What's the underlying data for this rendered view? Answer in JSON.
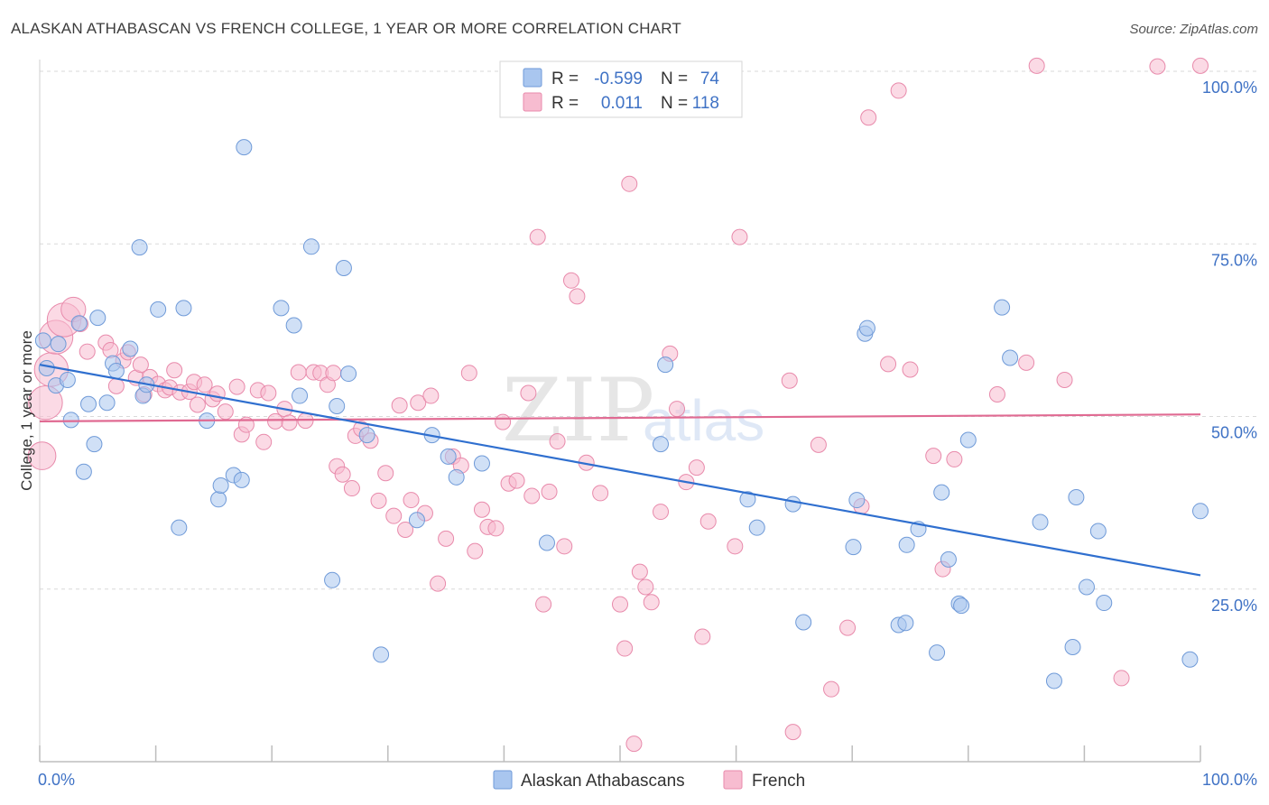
{
  "title": "ALASKAN ATHABASCAN VS FRENCH COLLEGE, 1 YEAR OR MORE CORRELATION CHART",
  "source": "Source: ZipAtlas.com",
  "watermark": {
    "zip": "ZIP",
    "atlas": "atlas"
  },
  "colors": {
    "blue_fill": "#a9c6ef",
    "blue_stroke": "#6f9ad8",
    "blue_line": "#2f6fcf",
    "pink_fill": "#f7bcd0",
    "pink_stroke": "#e88aab",
    "pink_line": "#e06a92",
    "axis_text": "#3f72c5",
    "grid": "#d9d9d9"
  },
  "legend": {
    "row1": {
      "r_label": "R =",
      "r_value": "-0.599",
      "n_label": "N =",
      "n_value": "74"
    },
    "row2": {
      "r_label": "R =",
      "r_value": "0.011",
      "n_label": "N =",
      "n_value": "118"
    }
  },
  "bottom_legend": {
    "series1": "Alaskan Athabascans",
    "series2": "French"
  },
  "chart_data": {
    "type": "scatter",
    "ylabel": "College, 1 year or more",
    "xlim": [
      0,
      100
    ],
    "ylim": [
      0,
      100
    ],
    "x_tick_labels": [
      "0.0%",
      "100.0%"
    ],
    "y_ticks": [
      25,
      50,
      75,
      100
    ],
    "y_tick_labels": [
      "25.0%",
      "50.0%",
      "75.0%",
      "100.0%"
    ],
    "grid": true,
    "legend_position": "top-center",
    "series": [
      {
        "name": "Alaskan Athabascans",
        "r": -0.599,
        "n": 74,
        "trend": {
          "x": [
            0,
            100
          ],
          "y": [
            57.5,
            27.0
          ]
        },
        "points": [
          [
            0.3,
            61.0,
            1
          ],
          [
            0.6,
            57.0,
            1
          ],
          [
            1.4,
            54.5,
            1
          ],
          [
            1.6,
            60.5,
            1
          ],
          [
            2.4,
            55.3,
            1
          ],
          [
            2.7,
            49.5,
            1
          ],
          [
            3.4,
            63.5,
            1
          ],
          [
            3.8,
            42.0,
            1
          ],
          [
            4.2,
            51.8,
            1
          ],
          [
            4.7,
            46.0,
            1
          ],
          [
            5.0,
            64.3,
            1
          ],
          [
            5.8,
            52.0,
            1
          ],
          [
            6.3,
            57.7,
            1
          ],
          [
            6.6,
            56.6,
            1
          ],
          [
            7.8,
            59.8,
            1
          ],
          [
            8.6,
            74.5,
            1
          ],
          [
            8.9,
            53.0,
            1
          ],
          [
            9.2,
            54.6,
            1
          ],
          [
            10.2,
            65.5,
            1
          ],
          [
            12.0,
            33.9,
            1
          ],
          [
            12.4,
            65.7,
            1
          ],
          [
            14.4,
            49.4,
            1
          ],
          [
            15.4,
            38.0,
            1
          ],
          [
            15.6,
            40.0,
            1
          ],
          [
            16.7,
            41.5,
            1
          ],
          [
            17.4,
            40.8,
            1
          ],
          [
            17.6,
            89.0,
            1
          ],
          [
            20.8,
            65.7,
            1
          ],
          [
            21.9,
            63.2,
            1
          ],
          [
            22.4,
            53.0,
            1
          ],
          [
            23.4,
            74.6,
            1
          ],
          [
            25.2,
            26.3,
            1
          ],
          [
            25.6,
            51.5,
            1
          ],
          [
            26.2,
            71.5,
            1
          ],
          [
            26.6,
            56.2,
            1
          ],
          [
            28.2,
            47.3,
            1
          ],
          [
            29.4,
            15.5,
            1
          ],
          [
            32.5,
            35.0,
            1
          ],
          [
            33.8,
            47.3,
            1
          ],
          [
            35.2,
            44.2,
            1
          ],
          [
            35.9,
            41.2,
            1
          ],
          [
            38.1,
            43.2,
            1
          ],
          [
            43.7,
            31.7,
            1
          ],
          [
            53.5,
            46.0,
            1
          ],
          [
            53.9,
            57.5,
            1
          ],
          [
            61.0,
            38.0,
            1
          ],
          [
            61.8,
            33.9,
            1
          ],
          [
            64.9,
            37.3,
            1
          ],
          [
            65.8,
            20.2,
            1
          ],
          [
            70.1,
            31.1,
            1
          ],
          [
            70.4,
            37.9,
            1
          ],
          [
            71.1,
            62.0,
            1
          ],
          [
            71.3,
            62.8,
            1
          ],
          [
            74.0,
            19.8,
            1
          ],
          [
            74.6,
            20.1,
            1
          ],
          [
            74.7,
            31.4,
            1
          ],
          [
            75.7,
            33.7,
            1
          ],
          [
            77.3,
            15.8,
            1
          ],
          [
            77.7,
            39.0,
            1
          ],
          [
            78.3,
            29.3,
            1
          ],
          [
            79.2,
            22.9,
            1
          ],
          [
            79.4,
            22.6,
            1
          ],
          [
            80.0,
            46.6,
            1
          ],
          [
            82.9,
            65.8,
            1
          ],
          [
            83.6,
            58.5,
            1
          ],
          [
            86.2,
            34.7,
            1
          ],
          [
            87.4,
            11.7,
            1
          ],
          [
            89.0,
            16.6,
            1
          ],
          [
            89.3,
            38.3,
            1
          ],
          [
            90.2,
            25.3,
            1
          ],
          [
            91.2,
            33.4,
            1
          ],
          [
            91.7,
            23.0,
            1
          ],
          [
            99.1,
            14.8,
            1
          ],
          [
            100.0,
            36.3,
            1
          ]
        ]
      },
      {
        "name": "French",
        "r": 0.011,
        "n": 118,
        "trend": {
          "x": [
            0,
            100
          ],
          "y": [
            49.3,
            50.3
          ]
        },
        "points": [
          [
            0.2,
            44.3,
            1.8
          ],
          [
            0.5,
            52.0,
            2.2
          ],
          [
            1.0,
            56.8,
            2.2
          ],
          [
            1.4,
            61.5,
            2.2
          ],
          [
            2.1,
            64.0,
            2.2
          ],
          [
            2.9,
            65.5,
            1.6
          ],
          [
            3.5,
            63.4,
            1
          ],
          [
            4.1,
            59.4,
            1
          ],
          [
            5.7,
            60.7,
            1
          ],
          [
            6.1,
            59.6,
            1
          ],
          [
            6.6,
            54.4,
            1
          ],
          [
            7.2,
            58.1,
            1
          ],
          [
            7.6,
            59.3,
            1
          ],
          [
            8.3,
            55.6,
            1
          ],
          [
            8.7,
            57.5,
            1
          ],
          [
            9.0,
            53.2,
            1
          ],
          [
            9.5,
            55.7,
            1
          ],
          [
            10.2,
            54.7,
            1
          ],
          [
            10.8,
            53.8,
            1
          ],
          [
            11.2,
            54.2,
            1
          ],
          [
            11.6,
            56.7,
            1
          ],
          [
            12.1,
            53.5,
            1
          ],
          [
            12.9,
            53.6,
            1
          ],
          [
            13.3,
            55.0,
            1
          ],
          [
            13.6,
            51.7,
            1
          ],
          [
            14.2,
            54.6,
            1
          ],
          [
            14.9,
            52.5,
            1
          ],
          [
            15.3,
            53.3,
            1
          ],
          [
            16.0,
            50.7,
            1
          ],
          [
            17.0,
            54.3,
            1
          ],
          [
            17.4,
            47.4,
            1
          ],
          [
            17.8,
            48.8,
            1
          ],
          [
            18.8,
            53.8,
            1
          ],
          [
            19.3,
            46.3,
            1
          ],
          [
            19.7,
            53.4,
            1
          ],
          [
            20.3,
            49.3,
            1
          ],
          [
            21.1,
            51.1,
            1
          ],
          [
            21.5,
            49.1,
            1
          ],
          [
            22.3,
            56.4,
            1
          ],
          [
            22.9,
            49.4,
            1
          ],
          [
            23.6,
            56.4,
            1
          ],
          [
            24.2,
            56.3,
            1
          ],
          [
            24.8,
            54.6,
            1
          ],
          [
            25.3,
            56.3,
            1
          ],
          [
            25.6,
            42.8,
            1
          ],
          [
            26.1,
            41.6,
            1
          ],
          [
            26.9,
            39.6,
            1
          ],
          [
            27.2,
            47.2,
            1
          ],
          [
            27.7,
            48.2,
            1
          ],
          [
            28.5,
            46.5,
            1
          ],
          [
            29.2,
            37.8,
            1
          ],
          [
            29.8,
            41.8,
            1
          ],
          [
            30.5,
            35.6,
            1
          ],
          [
            31.0,
            51.6,
            1
          ],
          [
            31.5,
            33.6,
            1
          ],
          [
            32.0,
            37.9,
            1
          ],
          [
            32.6,
            52.0,
            1
          ],
          [
            33.2,
            36.0,
            1
          ],
          [
            33.7,
            53.0,
            1
          ],
          [
            34.3,
            25.8,
            1
          ],
          [
            35.0,
            32.3,
            1
          ],
          [
            35.6,
            44.2,
            1
          ],
          [
            36.3,
            42.9,
            1
          ],
          [
            37.0,
            56.3,
            1
          ],
          [
            37.5,
            30.5,
            1
          ],
          [
            38.1,
            36.5,
            1
          ],
          [
            38.6,
            34.0,
            1
          ],
          [
            39.3,
            33.8,
            1
          ],
          [
            39.9,
            49.2,
            1
          ],
          [
            40.4,
            40.3,
            1
          ],
          [
            41.1,
            40.7,
            1
          ],
          [
            42.1,
            53.4,
            1
          ],
          [
            42.4,
            38.5,
            1
          ],
          [
            42.9,
            76.0,
            1
          ],
          [
            43.4,
            22.8,
            1
          ],
          [
            43.9,
            39.1,
            1
          ],
          [
            44.6,
            46.4,
            1
          ],
          [
            45.2,
            31.2,
            1
          ],
          [
            45.8,
            69.7,
            1
          ],
          [
            46.3,
            67.4,
            1
          ],
          [
            47.1,
            43.3,
            1
          ],
          [
            48.3,
            38.9,
            1
          ],
          [
            50.0,
            22.8,
            1
          ],
          [
            50.4,
            16.4,
            1
          ],
          [
            50.8,
            83.7,
            1
          ],
          [
            51.2,
            2.6,
            1
          ],
          [
            51.7,
            27.5,
            1
          ],
          [
            52.2,
            25.3,
            1
          ],
          [
            52.7,
            23.1,
            1
          ],
          [
            53.5,
            36.2,
            1
          ],
          [
            54.3,
            59.1,
            1
          ],
          [
            54.9,
            51.1,
            1
          ],
          [
            55.7,
            40.5,
            1
          ],
          [
            56.6,
            42.6,
            1
          ],
          [
            57.1,
            18.1,
            1
          ],
          [
            57.6,
            34.8,
            1
          ],
          [
            59.9,
            31.2,
            1
          ],
          [
            60.3,
            76.0,
            1
          ],
          [
            64.6,
            55.2,
            1
          ],
          [
            64.9,
            4.3,
            1
          ],
          [
            67.1,
            45.9,
            1
          ],
          [
            68.2,
            10.5,
            1
          ],
          [
            69.6,
            19.4,
            1
          ],
          [
            70.8,
            37.0,
            1
          ],
          [
            71.4,
            93.3,
            1
          ],
          [
            73.1,
            57.6,
            1
          ],
          [
            74.0,
            97.2,
            1
          ],
          [
            75.0,
            56.8,
            1
          ],
          [
            77.0,
            44.3,
            1
          ],
          [
            77.8,
            27.9,
            1
          ],
          [
            78.8,
            43.8,
            1
          ],
          [
            82.5,
            53.2,
            1
          ],
          [
            85.0,
            57.8,
            1
          ],
          [
            85.9,
            100.8,
            1
          ],
          [
            88.3,
            55.3,
            1
          ],
          [
            93.2,
            12.1,
            1
          ],
          [
            96.3,
            100.7,
            1
          ],
          [
            100.0,
            100.8,
            1
          ]
        ]
      }
    ]
  }
}
